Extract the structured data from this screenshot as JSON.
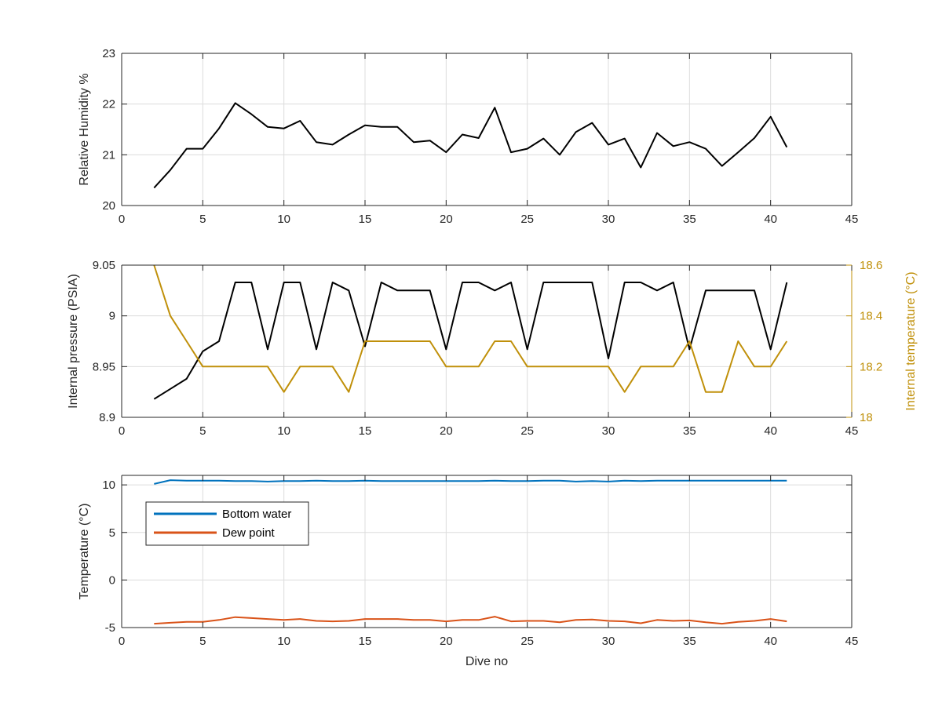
{
  "colors": {
    "black": "#000000",
    "pressure": "#000000",
    "internal_temp": "#c0900a",
    "bottom_water": "#0072bd",
    "dew_point": "#d95319",
    "grid": "#dcdcdc",
    "axis": "#262626"
  },
  "x_label": "Dive no",
  "chart_data": [
    {
      "type": "line",
      "xlim": [
        0,
        45
      ],
      "ylim": [
        20,
        23
      ],
      "xticks": [
        "0",
        "5",
        "10",
        "15",
        "20",
        "25",
        "30",
        "35",
        "40",
        "45"
      ],
      "yticks": [
        "20",
        "21",
        "22",
        "23"
      ],
      "ylabel": "Relative Humidity %",
      "grid": true,
      "series": [
        {
          "color_key": "black",
          "x": [
            2,
            3,
            4,
            5,
            6,
            7,
            8,
            9,
            10,
            11,
            12,
            13,
            14,
            15,
            16,
            17,
            18,
            19,
            20,
            21,
            22,
            23,
            24,
            25,
            26,
            27,
            28,
            29,
            30,
            31,
            32,
            33,
            34,
            35,
            36,
            37,
            38,
            39,
            40,
            41
          ],
          "values": [
            20.35,
            20.7,
            21.12,
            21.12,
            21.52,
            22.02,
            21.8,
            21.55,
            21.52,
            21.67,
            21.25,
            21.2,
            21.4,
            21.58,
            21.55,
            21.55,
            21.25,
            21.28,
            21.05,
            21.4,
            21.33,
            21.93,
            21.05,
            21.12,
            21.32,
            21.0,
            21.45,
            21.63,
            21.2,
            21.32,
            20.75,
            21.43,
            21.17,
            21.25,
            21.12,
            20.78,
            21.05,
            21.33,
            21.75,
            21.15
          ]
        }
      ]
    },
    {
      "type": "line",
      "xlim": [
        0,
        45
      ],
      "ylim": [
        8.9,
        9.05
      ],
      "y2lim": [
        18,
        18.6
      ],
      "xticks": [
        "0",
        "5",
        "10",
        "15",
        "20",
        "25",
        "30",
        "35",
        "40",
        "45"
      ],
      "yticks": [
        "8.9",
        "8.95",
        "9",
        "9.05"
      ],
      "y2ticks": [
        "18",
        "18.2",
        "18.4",
        "18.6"
      ],
      "ylabel": "Internal pressure (PSIA)",
      "y2label": "Internal temperature (°C)",
      "grid": true,
      "series": [
        {
          "axis": "left",
          "color_key": "pressure",
          "x": [
            2,
            3,
            4,
            5,
            6,
            7,
            8,
            9,
            10,
            11,
            12,
            13,
            14,
            15,
            16,
            17,
            18,
            19,
            20,
            21,
            22,
            23,
            24,
            25,
            26,
            27,
            28,
            29,
            30,
            31,
            32,
            33,
            34,
            35,
            36,
            37,
            38,
            39,
            40,
            41
          ],
          "values": [
            8.918,
            8.928,
            8.938,
            8.965,
            8.975,
            9.033,
            9.033,
            8.967,
            9.033,
            9.033,
            8.967,
            9.033,
            9.025,
            8.97,
            9.033,
            9.025,
            9.025,
            9.025,
            8.967,
            9.033,
            9.033,
            9.025,
            9.033,
            8.967,
            9.033,
            9.033,
            9.033,
            9.033,
            8.958,
            9.033,
            9.033,
            9.025,
            9.033,
            8.967,
            9.025,
            9.025,
            9.025,
            9.025,
            8.967,
            9.033
          ]
        },
        {
          "axis": "right",
          "color_key": "internal_temp",
          "x": [
            2,
            3,
            4,
            5,
            6,
            7,
            8,
            9,
            10,
            11,
            12,
            13,
            14,
            15,
            16,
            17,
            18,
            19,
            20,
            21,
            22,
            23,
            24,
            25,
            26,
            27,
            28,
            29,
            30,
            31,
            32,
            33,
            34,
            35,
            36,
            37,
            38,
            39,
            40,
            41
          ],
          "values": [
            18.6,
            18.4,
            18.3,
            18.2,
            18.2,
            18.2,
            18.2,
            18.2,
            18.1,
            18.2,
            18.2,
            18.2,
            18.1,
            18.3,
            18.3,
            18.3,
            18.3,
            18.3,
            18.2,
            18.2,
            18.2,
            18.3,
            18.3,
            18.2,
            18.2,
            18.2,
            18.2,
            18.2,
            18.2,
            18.1,
            18.2,
            18.2,
            18.2,
            18.3,
            18.1,
            18.1,
            18.3,
            18.2,
            18.2,
            18.3
          ]
        }
      ]
    },
    {
      "type": "line",
      "xlim": [
        0,
        45
      ],
      "ylim": [
        -5,
        11
      ],
      "xticks": [
        "0",
        "5",
        "10",
        "15",
        "20",
        "25",
        "30",
        "35",
        "40",
        "45"
      ],
      "yticks": [
        "-5",
        "0",
        "5",
        "10"
      ],
      "ylabel": "Temperature (°C)",
      "xlabel": "Dive no",
      "grid": true,
      "legend": "top-left",
      "series": [
        {
          "name": "Bottom water",
          "color_key": "bottom_water",
          "x": [
            2,
            3,
            4,
            5,
            6,
            7,
            8,
            9,
            10,
            11,
            12,
            13,
            14,
            15,
            16,
            17,
            18,
            19,
            20,
            21,
            22,
            23,
            24,
            25,
            26,
            27,
            28,
            29,
            30,
            31,
            32,
            33,
            34,
            35,
            36,
            37,
            38,
            39,
            40,
            41
          ],
          "values": [
            10.1,
            10.5,
            10.45,
            10.45,
            10.45,
            10.4,
            10.4,
            10.35,
            10.4,
            10.4,
            10.45,
            10.4,
            10.4,
            10.45,
            10.4,
            10.4,
            10.4,
            10.4,
            10.4,
            10.4,
            10.4,
            10.45,
            10.4,
            10.4,
            10.45,
            10.45,
            10.35,
            10.4,
            10.35,
            10.45,
            10.4,
            10.45,
            10.45,
            10.45,
            10.45,
            10.45,
            10.45,
            10.45,
            10.45,
            10.45
          ]
        },
        {
          "name": "Dew point",
          "color_key": "dew_point",
          "x": [
            2,
            3,
            4,
            5,
            6,
            7,
            8,
            9,
            10,
            11,
            12,
            13,
            14,
            15,
            16,
            17,
            18,
            19,
            20,
            21,
            22,
            23,
            24,
            25,
            26,
            27,
            28,
            29,
            30,
            31,
            32,
            33,
            34,
            35,
            36,
            37,
            38,
            39,
            40,
            41
          ],
          "values": [
            -4.6,
            -4.5,
            -4.4,
            -4.4,
            -4.2,
            -3.9,
            -4.0,
            -4.1,
            -4.2,
            -4.1,
            -4.3,
            -4.35,
            -4.3,
            -4.1,
            -4.1,
            -4.1,
            -4.2,
            -4.2,
            -4.35,
            -4.2,
            -4.2,
            -3.85,
            -4.35,
            -4.3,
            -4.3,
            -4.45,
            -4.2,
            -4.15,
            -4.3,
            -4.35,
            -4.55,
            -4.2,
            -4.3,
            -4.25,
            -4.45,
            -4.6,
            -4.4,
            -4.3,
            -4.1,
            -4.35
          ]
        }
      ]
    }
  ]
}
